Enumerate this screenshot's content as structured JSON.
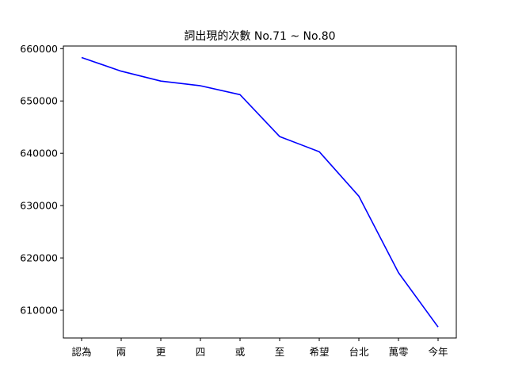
{
  "chart_data": {
    "type": "line",
    "title": "詞出現的次數 No.71 ~ No.80",
    "xlabel": "",
    "ylabel": "",
    "categories": [
      "認為",
      "兩",
      "更",
      "四",
      "或",
      "至",
      "希望",
      "台北",
      "萬零",
      "今年"
    ],
    "series": [
      {
        "values": [
          658300,
          655700,
          653800,
          652900,
          651200,
          643200,
          640300,
          631800,
          617200,
          606800
        ],
        "color": "#0000ff"
      }
    ],
    "ylim": [
      604700,
      660500
    ],
    "yticks": [
      610000,
      620000,
      630000,
      640000,
      650000,
      660000
    ],
    "ytick_labels": [
      "610000",
      "620000",
      "630000",
      "640000",
      "650000",
      "660000"
    ],
    "grid": false,
    "legend": "none"
  }
}
